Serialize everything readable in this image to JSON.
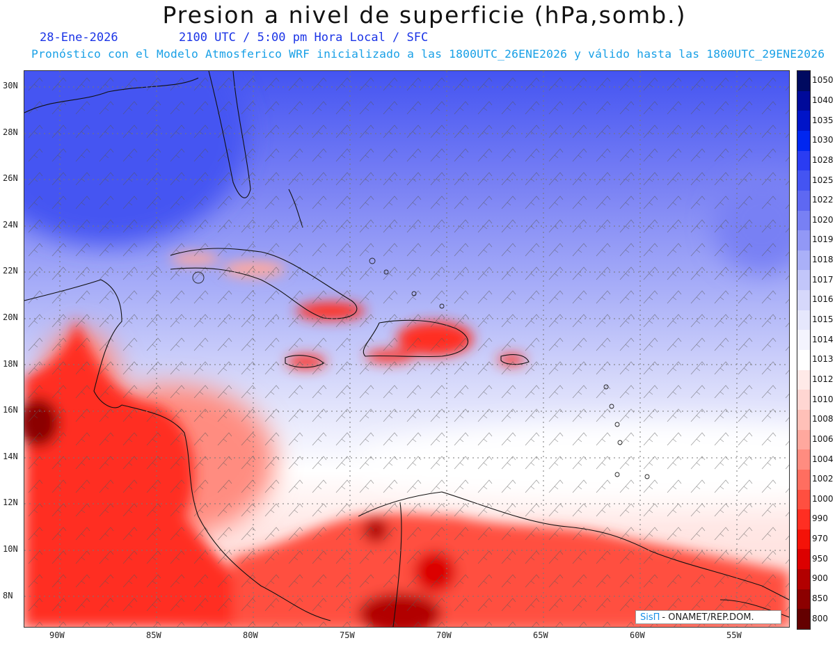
{
  "header": {
    "title": "Presion a nivel de superficie (hPa,somb.)",
    "date": "28-Ene-2026",
    "time": "2100 UTC / 5:00 pm Hora Local / SFC",
    "description": "Pronóstico con el Modelo Atmosferico WRF inicializado a las 1800UTC_26ENE2026 y válido hasta las  1800UTC_29ENE2026"
  },
  "map": {
    "lat_ticks": [
      "30N",
      "28N",
      "26N",
      "24N",
      "22N",
      "20N",
      "18N",
      "16N",
      "14N",
      "12N",
      "10N",
      "8N"
    ],
    "lon_ticks": [
      "90W",
      "85W",
      "80W",
      "75W",
      "70W",
      "65W",
      "60W",
      "55W"
    ],
    "grid": "dotted"
  },
  "legend": {
    "levels": [
      "1050",
      "1040",
      "1035",
      "1030",
      "1028",
      "1025",
      "1022",
      "1020",
      "1019",
      "1018",
      "1017",
      "1016",
      "1015",
      "1014",
      "1013",
      "1012",
      "1010",
      "1008",
      "1006",
      "1004",
      "1002",
      "1000",
      "990",
      "970",
      "950",
      "900",
      "850",
      "800"
    ],
    "colors": [
      "#000a60",
      "#000a9a",
      "#0014c8",
      "#0026f0",
      "#2a3cf2",
      "#4454f2",
      "#5e68f2",
      "#7880f4",
      "#9298f6",
      "#aab0f8",
      "#c2c6fa",
      "#d6d8fb",
      "#e6e7fc",
      "#f4f4fe",
      "#ffffff",
      "#ffeae8",
      "#ffd6d2",
      "#ffc0b8",
      "#ffa89e",
      "#ff8c80",
      "#ff6e60",
      "#ff4f40",
      "#ff2e22",
      "#f41208",
      "#dc0000",
      "#b20000",
      "#8c0000",
      "#640000"
    ]
  },
  "credit": {
    "brand": "SisΠ",
    "agency": "- ONAMET/REP.DOM."
  }
}
